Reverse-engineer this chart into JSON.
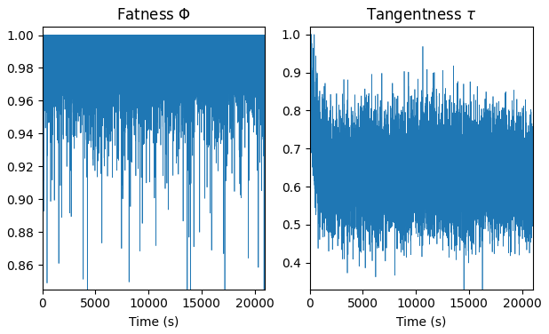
{
  "title_left": "Fatness $\\Phi$",
  "title_right": "Tangentness $\\tau$",
  "xlabel": "Time (s)",
  "x_max": 21000,
  "x_ticks": [
    0,
    5000,
    10000,
    15000,
    20000
  ],
  "left_ylim": [
    0.845,
    1.005
  ],
  "left_yticks": [
    0.86,
    0.88,
    0.9,
    0.92,
    0.94,
    0.96,
    0.98,
    1.0
  ],
  "right_ylim": [
    0.33,
    1.02
  ],
  "right_yticks": [
    0.4,
    0.5,
    0.6,
    0.7,
    0.8,
    0.9,
    1.0
  ],
  "line_color": "#1f77b4",
  "line_width": 0.5,
  "n_points": 10000,
  "figsize": [
    6.18,
    3.76
  ],
  "dpi": 100
}
